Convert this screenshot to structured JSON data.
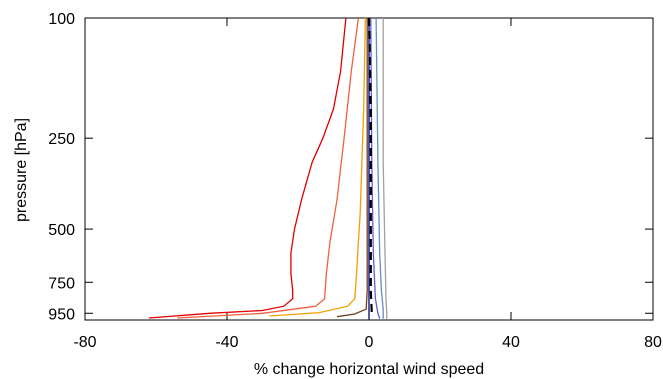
{
  "chart_data": {
    "type": "line",
    "xlabel": "% change horizontal wind speed",
    "ylabel": "pressure [hPa]",
    "xlim": [
      -80,
      80
    ],
    "ylim": [
      100,
      1000
    ],
    "y_scale": "log-pressure (inverted)",
    "x_ticks": [
      -80,
      -40,
      0,
      40,
      80
    ],
    "y_ticks": [
      100,
      250,
      500,
      750,
      950
    ],
    "grid": false,
    "legend": "none",
    "series": [
      {
        "color": "#e00000",
        "points": [
          [
            -6.5,
            100
          ],
          [
            -8,
            150
          ],
          [
            -10,
            200
          ],
          [
            -13,
            250
          ],
          [
            -16,
            300
          ],
          [
            -19,
            400
          ],
          [
            -21,
            500
          ],
          [
            -22,
            600
          ],
          [
            -22,
            700
          ],
          [
            -21.5,
            800
          ],
          [
            -21.5,
            850
          ],
          [
            -24,
            900
          ],
          [
            -30,
            930
          ],
          [
            -45,
            950
          ],
          [
            -62,
            985
          ]
        ]
      },
      {
        "color": "#f06040",
        "points": [
          [
            -3,
            100
          ],
          [
            -5,
            150
          ],
          [
            -7,
            250
          ],
          [
            -9,
            400
          ],
          [
            -11,
            550
          ],
          [
            -12,
            700
          ],
          [
            -12.5,
            850
          ],
          [
            -15,
            900
          ],
          [
            -30,
            950
          ],
          [
            -54,
            985
          ]
        ]
      },
      {
        "color": "#f0a000",
        "points": [
          [
            -1,
            100
          ],
          [
            -1.5,
            200
          ],
          [
            -2,
            300
          ],
          [
            -2.5,
            450
          ],
          [
            -3,
            550
          ],
          [
            -3.5,
            700
          ],
          [
            -4,
            850
          ],
          [
            -6,
            900
          ],
          [
            -14,
            945
          ],
          [
            -28,
            970
          ]
        ]
      },
      {
        "color": "#704020",
        "points": [
          [
            -0.5,
            100
          ],
          [
            -0.5,
            400
          ],
          [
            -0.5,
            800
          ],
          [
            -0.8,
            920
          ],
          [
            -4,
            955
          ],
          [
            -9,
            975
          ]
        ]
      },
      {
        "color": "#a0a0a0",
        "points": [
          [
            4,
            100
          ],
          [
            4,
            300
          ],
          [
            4.5,
            600
          ],
          [
            4.8,
            850
          ],
          [
            5,
            950
          ],
          [
            5,
            990
          ]
        ]
      },
      {
        "color": "#6090c0",
        "points": [
          [
            2,
            100
          ],
          [
            2.5,
            300
          ],
          [
            3,
            600
          ],
          [
            3.5,
            800
          ],
          [
            4,
            920
          ],
          [
            4,
            990
          ]
        ]
      },
      {
        "color": "#6060d0",
        "points": [
          [
            0.5,
            100
          ],
          [
            0.8,
            300
          ],
          [
            1.2,
            600
          ],
          [
            1.8,
            850
          ],
          [
            2.5,
            950
          ],
          [
            3,
            990
          ]
        ]
      },
      {
        "color": "#000080",
        "points": [
          [
            0,
            100
          ],
          [
            0,
            400
          ],
          [
            0,
            800
          ],
          [
            0,
            950
          ],
          [
            0,
            990
          ]
        ]
      },
      {
        "color": "#000000",
        "dashed": true,
        "points": [
          [
            0,
            100
          ],
          [
            0.5,
            200
          ],
          [
            0.5,
            500
          ],
          [
            0.5,
            800
          ],
          [
            0.8,
            950
          ]
        ]
      }
    ]
  }
}
